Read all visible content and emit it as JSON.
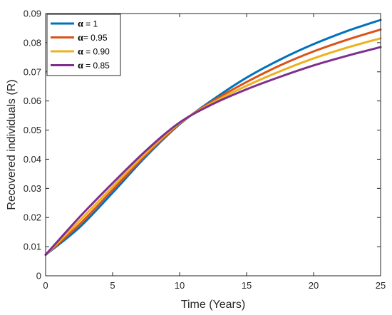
{
  "chart_data": {
    "type": "line",
    "xlabel": "Time (Years)",
    "ylabel": "Recovered individuals (R)",
    "xlim": [
      0,
      25
    ],
    "ylim": [
      0,
      0.09
    ],
    "xticks": [
      0,
      5,
      10,
      15,
      20,
      25
    ],
    "xtick_labels": [
      "0",
      "5",
      "10",
      "15",
      "20",
      "25"
    ],
    "yticks": [
      0,
      0.01,
      0.02,
      0.03,
      0.04,
      0.05,
      0.06,
      0.07,
      0.08,
      0.09
    ],
    "ytick_labels": [
      "0",
      "0.01",
      "0.02",
      "0.03",
      "0.04",
      "0.05",
      "0.06",
      "0.07",
      "0.08",
      "0.09"
    ],
    "grid": false,
    "legend_position": "top-left",
    "series": [
      {
        "name": "α = 1",
        "legend_symbol": "α",
        "legend_suffix": " = 1",
        "color": "#0072BD",
        "x": [
          0,
          2.5,
          5,
          7.5,
          10,
          12.5,
          15,
          17.5,
          20,
          22.5,
          25
        ],
        "y": [
          0.0072,
          0.0165,
          0.0285,
          0.041,
          0.052,
          0.0605,
          0.068,
          0.0742,
          0.0795,
          0.084,
          0.0878
        ]
      },
      {
        "name": "α= 0.95",
        "legend_symbol": "α",
        "legend_suffix": "= 0.95",
        "color": "#D95319",
        "x": [
          0,
          2.5,
          5,
          7.5,
          10,
          12.5,
          15,
          17.5,
          20,
          22.5,
          25
        ],
        "y": [
          0.0072,
          0.0175,
          0.0295,
          0.0415,
          0.0522,
          0.06,
          0.0665,
          0.0722,
          0.077,
          0.081,
          0.0845
        ]
      },
      {
        "name": "α = 0.90",
        "legend_symbol": "α",
        "legend_suffix": " = 0.90",
        "color": "#EDB120",
        "x": [
          0,
          2.5,
          5,
          7.5,
          10,
          12.5,
          15,
          17.5,
          20,
          22.5,
          25
        ],
        "y": [
          0.0072,
          0.0187,
          0.0306,
          0.0422,
          0.0524,
          0.0595,
          0.0652,
          0.0702,
          0.0746,
          0.0783,
          0.0815
        ]
      },
      {
        "name": "α = 0.85",
        "legend_symbol": "α",
        "legend_suffix": " = 0.85",
        "color": "#7E2F8E",
        "x": [
          0,
          2.5,
          5,
          7.5,
          10,
          12.5,
          15,
          17.5,
          20,
          22.5,
          25
        ],
        "y": [
          0.0072,
          0.02,
          0.0318,
          0.043,
          0.0526,
          0.059,
          0.064,
          0.0683,
          0.0722,
          0.0755,
          0.0785
        ]
      }
    ]
  }
}
